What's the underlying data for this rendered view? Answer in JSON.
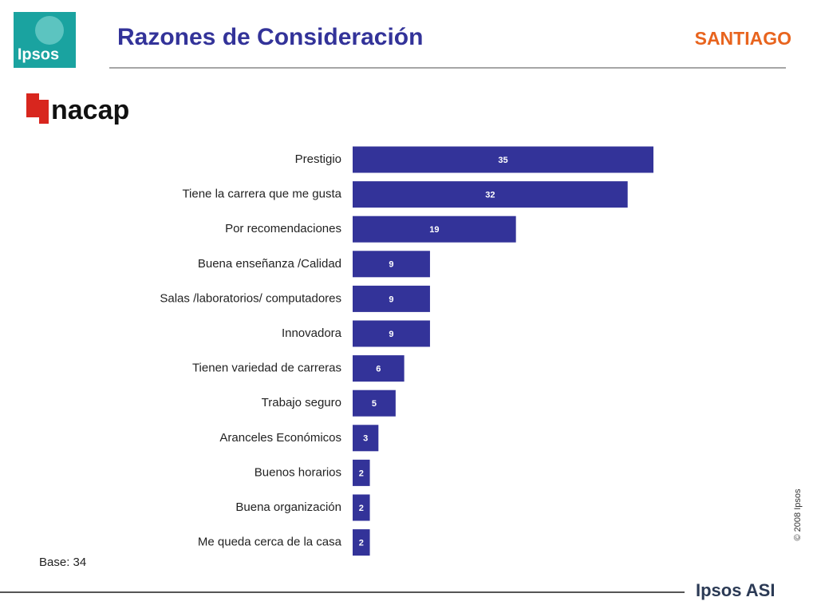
{
  "logo": "Ipsos",
  "region": "SANTIAGO",
  "brand": "nacap",
  "note": "Base: 34",
  "copyright": "© 2008 Ipsos",
  "footer_logo": "Ipsos ASI",
  "chart_data": {
    "type": "bar",
    "orientation": "horizontal",
    "title": "Razones de Consideración",
    "categories": [
      "Prestigio",
      "Tiene la carrera que me gusta",
      "Por recomendaciones",
      "Buena enseñanza /Calidad",
      "Salas /laboratorios/ computadores",
      "Innovadora",
      "Tienen variedad de carreras",
      "Trabajo seguro",
      "Aranceles Económicos",
      "Buenos horarios",
      "Buena organización",
      "Me queda cerca de la casa"
    ],
    "values": [
      35,
      32,
      19,
      9,
      9,
      9,
      6,
      5,
      3,
      2,
      2,
      2
    ],
    "color": "#333399"
  }
}
